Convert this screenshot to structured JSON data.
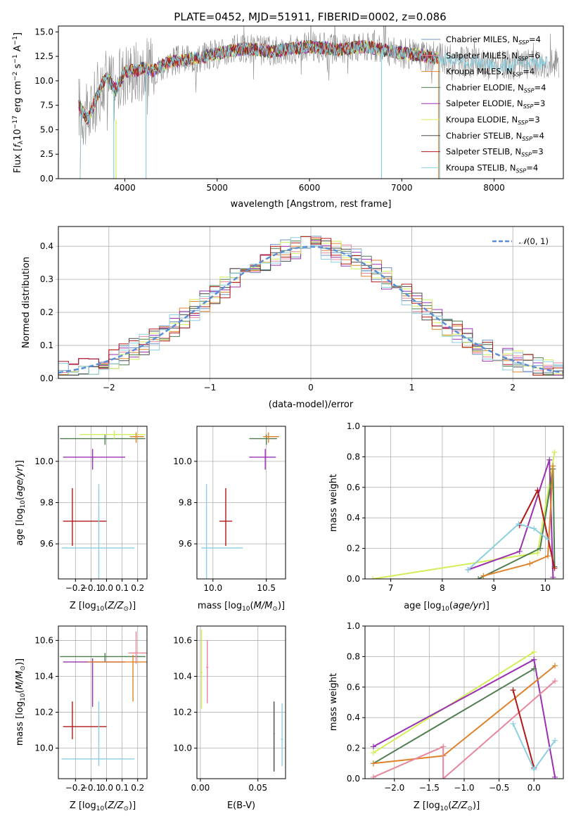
{
  "colors": {
    "chabrier_miles": "#6f95c6",
    "salpeter_miles": "#e8879c",
    "kroupa_miles": "#e0822a",
    "chabrier_elodie": "#4f7d4f",
    "salpeter_elodie": "#9b30b0",
    "kroupa_elodie": "#d2ee5a",
    "chabrier_stelib": "#4a4a4a",
    "salpeter_stelib": "#b01818",
    "kroupa_stelib": "#8ccfe0",
    "data_gray": "#888888",
    "normal_curve": "#5b8ed6"
  },
  "spectrum": {
    "title": "PLATE=0452, MJD=51911, FIBERID=0002, z=0.086",
    "xlabel": "wavelength [Angstrom, rest frame]",
    "ylabel": "Flux [f_λ 10^-17 erg cm^-2 s^-1 A^-1]",
    "xlim": [
      3280,
      8750
    ],
    "ylim": [
      0,
      15.6
    ],
    "xticks": [
      "4000",
      "5000",
      "6000",
      "7000",
      "8000"
    ],
    "yticks": [
      "0.0",
      "2.5",
      "5.0",
      "7.5",
      "10.0",
      "12.5",
      "15.0"
    ],
    "legend": [
      {
        "label": "Chabrier MILES, N_SSP=4",
        "color": "#6f95c6"
      },
      {
        "label": "Salpeter MILES, N_SSP=6",
        "color": "#e8879c"
      },
      {
        "label": "Kroupa MILES, N_SSP=4",
        "color": "#e0822a"
      },
      {
        "label": "Chabrier ELODIE, N_SSP=4",
        "color": "#4f7d4f"
      },
      {
        "label": "Salpeter ELODIE, N_SSP=3",
        "color": "#9b30b0"
      },
      {
        "label": "Kroupa ELODIE, N_SSP=3",
        "color": "#d2ee5a"
      },
      {
        "label": "Chabrier STELIB, N_SSP=4",
        "color": "#4a4a4a"
      },
      {
        "label": "Salpeter STELIB, N_SSP=3",
        "color": "#b01818"
      },
      {
        "label": "Kroupa STELIB, N_SSP=4",
        "color": "#8ccfe0"
      }
    ]
  },
  "residuals": {
    "xlabel": "(data-model)/error",
    "ylabel": "Normed distribution",
    "xlim": [
      -2.5,
      2.5
    ],
    "ylim": [
      0,
      0.46
    ],
    "xticks": [
      "−2",
      "−1",
      "0",
      "1",
      "2"
    ],
    "yticks": [
      "0.0",
      "0.1",
      "0.2",
      "0.3",
      "0.4"
    ],
    "legend_label": "N(0, 1)"
  },
  "panels": {
    "age_z": {
      "xlabel": "Z [log10(Z/Z⊙)]",
      "ylabel": "age  [log10(age/yr)]",
      "xticks": [
        "−0.2",
        "−0.1",
        "0.0",
        "0.1",
        "0.2"
      ],
      "yticks": [
        "9.6",
        "9.8",
        "10.0"
      ]
    },
    "age_mass": {
      "xlabel": "mass [log10(M/M⊙)]",
      "xticks": [
        "10.0",
        "10.5"
      ],
      "yticks": [
        "9.6",
        "9.8",
        "10.0"
      ]
    },
    "mw_age": {
      "xlabel": "age  [log10(age/yr)]",
      "ylabel": "mass weight",
      "xticks": [
        "7",
        "8",
        "9",
        "10"
      ],
      "yticks": [
        "0.0",
        "0.2",
        "0.4",
        "0.6",
        "0.8",
        "1.0"
      ]
    },
    "mass_z": {
      "xlabel": "Z [log10(Z/Z⊙)]",
      "ylabel": "mass [log10(M/M⊙)]",
      "xticks": [
        "−0.2",
        "−0.1",
        "0.0",
        "0.1",
        "0.2"
      ],
      "yticks": [
        "10.0",
        "10.2",
        "10.4",
        "10.6"
      ]
    },
    "mass_ebv": {
      "xlabel": "E(B-V)",
      "xticks": [
        "0.00",
        "0.05"
      ],
      "yticks": [
        "10.0",
        "10.2",
        "10.4",
        "10.6"
      ]
    },
    "mw_z": {
      "xlabel": "Z [log10(Z/Z⊙)]",
      "ylabel": "mass weight",
      "xticks": [
        "−2.0",
        "−1.5",
        "−1.0",
        "−0.5",
        "0.0"
      ],
      "yticks": [
        "0.0",
        "0.2",
        "0.4",
        "0.6",
        "0.8",
        "1.0"
      ]
    }
  },
  "chart_data": [
    {
      "type": "line",
      "title": "PLATE=0452, MJD=51911, FIBERID=0002, z=0.086",
      "xlabel": "wavelength [Angstrom, rest frame]",
      "ylabel": "Flux [fλ10^-17 erg cm^-2 s^-1 A^-1]",
      "xlim": [
        3280,
        8750
      ],
      "ylim": [
        0,
        15.6
      ],
      "series": [
        {
          "name": "data",
          "x": [
            3500,
            3600,
            3700,
            3800,
            3900,
            4000,
            4100,
            4200,
            4300,
            4500,
            4700,
            5000,
            5300,
            5600,
            6000,
            6300,
            6600,
            6900,
            7200,
            7500,
            7800,
            8100,
            8400
          ],
          "y": [
            7.5,
            6.0,
            8.5,
            10.5,
            9.0,
            11.0,
            11.0,
            11.3,
            11.0,
            12.0,
            12.2,
            12.8,
            13.3,
            13.0,
            13.5,
            13.2,
            13.5,
            13.0,
            12.6,
            12.2,
            11.8,
            11.5,
            11.8
          ]
        }
      ]
    },
    {
      "type": "line",
      "xlabel": "(data-model)/error",
      "ylabel": "Normed distribution",
      "xlim": [
        -2.5,
        2.5
      ],
      "ylim": [
        0,
        0.46
      ],
      "series": [
        {
          "name": "N(0, 1)",
          "x": [
            -2.5,
            -2,
            -1.5,
            -1,
            -0.5,
            0,
            0.5,
            1,
            1.5,
            2,
            2.5
          ],
          "y": [
            0.018,
            0.054,
            0.13,
            0.242,
            0.352,
            0.399,
            0.352,
            0.242,
            0.13,
            0.054,
            0.018
          ]
        }
      ]
    },
    {
      "type": "scatter",
      "xlabel": "Z [log10(Z/Z⊙)]",
      "ylabel": "age  [log10(age/yr)]",
      "xlim": [
        -0.31,
        0.26
      ],
      "ylim": [
        9.43,
        10.17
      ],
      "points": [
        {
          "series": "Salpeter STELIB",
          "x": -0.22,
          "y": 9.71
        },
        {
          "series": "Kroupa STELIB",
          "x": -0.05,
          "y": 9.58
        },
        {
          "series": "Salpeter ELODIE",
          "x": -0.09,
          "y": 10.02
        },
        {
          "series": "Chabrier ELODIE",
          "x": -0.01,
          "y": 10.11
        },
        {
          "series": "Kroupa ELODIE",
          "x": 0.05,
          "y": 10.13
        },
        {
          "series": "Kroupa MILES",
          "x": 0.19,
          "y": 10.12
        }
      ]
    },
    {
      "type": "scatter",
      "xlabel": "mass [log10(M/M⊙)]",
      "xlim": [
        9.85,
        10.68
      ],
      "ylim": [
        9.43,
        10.17
      ],
      "points": [
        {
          "series": "Salpeter STELIB",
          "x": 10.12,
          "y": 9.71
        },
        {
          "series": "Kroupa STELIB",
          "x": 9.94,
          "y": 9.58
        },
        {
          "series": "Salpeter ELODIE",
          "x": 10.49,
          "y": 10.02
        },
        {
          "series": "Chabrier ELODIE",
          "x": 10.5,
          "y": 10.11
        },
        {
          "series": "Kroupa MILES",
          "x": 10.52,
          "y": 10.12
        }
      ]
    },
    {
      "type": "line",
      "xlabel": "age  [log10(age/yr)]",
      "ylabel": "mass weight",
      "xlim": [
        6.5,
        10.35
      ],
      "ylim": [
        0,
        1.0
      ],
      "series": [
        {
          "name": "Kroupa ELODIE",
          "x": [
            6.65,
            9.85,
            10.18
          ],
          "y": [
            0.0,
            0.17,
            0.83
          ]
        },
        {
          "name": "Salpeter ELODIE",
          "x": [
            8.5,
            9.5,
            10.08,
            10.15
          ],
          "y": [
            0.06,
            0.18,
            0.78,
            0.01
          ]
        },
        {
          "name": "Chabrier ELODIE",
          "x": [
            8.7,
            9.9,
            10.15,
            10.18
          ],
          "y": [
            0.0,
            0.2,
            0.72,
            0.08
          ]
        },
        {
          "name": "Kroupa MILES",
          "x": [
            8.8,
            9.7,
            10.05,
            10.15
          ],
          "y": [
            0.02,
            0.1,
            0.15,
            0.74
          ]
        },
        {
          "name": "Salpeter STELIB",
          "x": [
            9.5,
            9.85,
            10.18
          ],
          "y": [
            0.35,
            0.58,
            0.07
          ]
        },
        {
          "name": "Kroupa STELIB",
          "x": [
            8.5,
            9.48,
            9.78,
            10.05
          ],
          "y": [
            0.06,
            0.36,
            0.33,
            0.26
          ]
        }
      ]
    },
    {
      "type": "scatter",
      "xlabel": "Z [log10(Z/Z⊙)]",
      "ylabel": "mass [log10(M/M⊙)]",
      "xlim": [
        -0.31,
        0.26
      ],
      "ylim": [
        9.83,
        10.68
      ],
      "points": [
        {
          "series": "Salpeter STELIB",
          "x": -0.22,
          "y": 10.12
        },
        {
          "series": "Kroupa STELIB",
          "x": -0.05,
          "y": 9.94
        },
        {
          "series": "Salpeter ELODIE",
          "x": -0.09,
          "y": 10.48
        },
        {
          "series": "Chabrier ELODIE",
          "x": -0.01,
          "y": 10.51
        },
        {
          "series": "Salpeter MILES",
          "x": 0.19,
          "y": 10.53
        },
        {
          "series": "Kroupa MILES",
          "x": 0.17,
          "y": 10.48
        }
      ]
    },
    {
      "type": "scatter",
      "xlabel": "E(B-V)",
      "xlim": [
        -0.003,
        0.074
      ],
      "ylim": [
        9.83,
        10.68
      ],
      "points": [
        {
          "series": "Kroupa ELODIE",
          "x": 0.001,
          "y": 10.42
        },
        {
          "series": "Salpeter MILES",
          "x": 0.006,
          "y": 10.45
        },
        {
          "series": "Chabrier STELIB",
          "x": 0.064,
          "y": 10.08
        },
        {
          "series": "Kroupa STELIB",
          "x": 0.071,
          "y": 10.05
        }
      ]
    },
    {
      "type": "line",
      "xlabel": "Z [log10(Z/Z⊙)]",
      "ylabel": "mass weight",
      "xlim": [
        -2.42,
        0.42
      ],
      "ylim": [
        0,
        1.0
      ],
      "series": [
        {
          "name": "Kroupa ELODIE",
          "x": [
            -2.3,
            0.0
          ],
          "y": [
            0.17,
            0.83
          ]
        },
        {
          "name": "Salpeter ELODIE",
          "x": [
            -2.3,
            0.0,
            0.3
          ],
          "y": [
            0.21,
            0.78,
            0.01
          ]
        },
        {
          "name": "Chabrier ELODIE",
          "x": [
            -2.3,
            0.0
          ],
          "y": [
            0.1,
            0.72
          ]
        },
        {
          "name": "Kroupa MILES",
          "x": [
            -2.3,
            -1.3,
            0.3
          ],
          "y": [
            0.1,
            0.15,
            0.74
          ]
        },
        {
          "name": "Salpeter MILES",
          "x": [
            -2.3,
            -1.3,
            -1.3,
            0.3
          ],
          "y": [
            0.01,
            0.21,
            0.0,
            0.64
          ]
        },
        {
          "name": "Salpeter STELIB",
          "x": [
            -0.3,
            0.0
          ],
          "y": [
            0.58,
            0.07
          ]
        },
        {
          "name": "Kroupa STELIB",
          "x": [
            -0.3,
            0.0,
            0.3
          ],
          "y": [
            0.36,
            0.06,
            0.25
          ]
        }
      ]
    }
  ]
}
